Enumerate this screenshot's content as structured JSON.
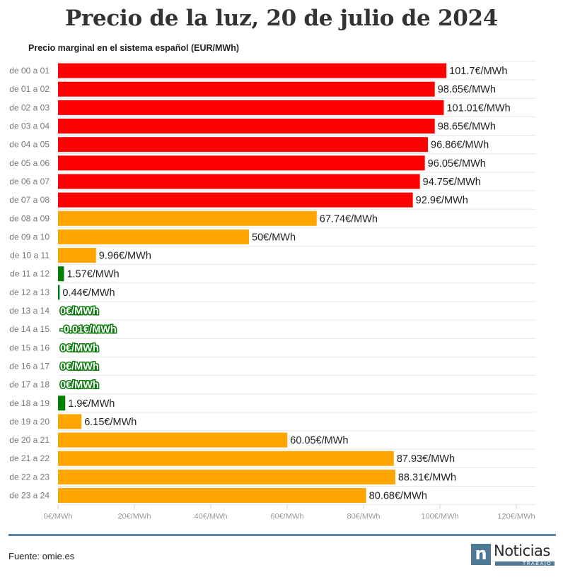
{
  "header": {
    "title": "Precio de la luz, 20 de julio de 2024",
    "subtitle": "Precio marginal en el sistema español (EUR/MWh)"
  },
  "footer": {
    "source": "Fuente: omie.es",
    "logo_letter": "n",
    "logo_word": "Noticias",
    "logo_sub": "TRABAJO"
  },
  "colors": {
    "high": "#ff0000",
    "mid": "#ffa500",
    "low": "#008000",
    "grid": "#e6e6e6",
    "accent": "#4f7796"
  },
  "chart_data": {
    "type": "bar",
    "orientation": "horizontal",
    "title": "Precio de la luz, 20 de julio de 2024",
    "subtitle": "Precio marginal en el sistema español (EUR/MWh)",
    "xlabel": "",
    "ylabel": "",
    "xlim": [
      0,
      120
    ],
    "ticks": [
      0,
      20,
      40,
      60,
      80,
      100,
      120
    ],
    "tick_labels": [
      "0€/MWh",
      "20€/MWh",
      "40€/MWh",
      "60€/MWh",
      "80€/MWh",
      "100€/MWh",
      "120€/MWh"
    ],
    "categories": [
      "de 00 a 01",
      "de 01 a 02",
      "de 02 a 03",
      "de 03 a 04",
      "de 04 a 05",
      "de 05 a 06",
      "de 06 a 07",
      "de 07 a 08",
      "de 08 a 09",
      "de 09 a 10",
      "de 10 a 11",
      "de 11 a 12",
      "de 12 a 13",
      "de 13 a 14",
      "de 14 a 15",
      "de 15 a 16",
      "de 16 a 17",
      "de 17 a 18",
      "de 18 a 19",
      "de 19 a 20",
      "de 20 a 21",
      "de 21 a 22",
      "de 22 a 23",
      "de 23 a 24"
    ],
    "values": [
      101.7,
      98.65,
      101.01,
      98.65,
      96.86,
      96.05,
      94.75,
      92.9,
      67.74,
      50,
      9.96,
      1.57,
      0.44,
      0,
      -0.01,
      0,
      0,
      0,
      1.9,
      6.15,
      60.05,
      87.93,
      88.31,
      80.68
    ],
    "value_labels": [
      "101.7€/MWh",
      "98.65€/MWh",
      "101.01€/MWh",
      "98.65€/MWh",
      "96.86€/MWh",
      "96.05€/MWh",
      "94.75€/MWh",
      "92.9€/MWh",
      "67.74€/MWh",
      "50€/MWh",
      "9.96€/MWh",
      "1.57€/MWh",
      "0.44€/MWh",
      "0€/MWh",
      "-0.01€/MWh",
      "0€/MWh",
      "0€/MWh",
      "0€/MWh",
      "1.9€/MWh",
      "6.15€/MWh",
      "60.05€/MWh",
      "87.93€/MWh",
      "88.31€/MWh",
      "80.68€/MWh"
    ],
    "bar_colors": [
      "high",
      "high",
      "high",
      "high",
      "high",
      "high",
      "high",
      "high",
      "mid",
      "mid",
      "mid",
      "low",
      "low",
      "low",
      "low",
      "low",
      "low",
      "low",
      "low",
      "mid",
      "mid",
      "mid",
      "mid",
      "mid"
    ]
  }
}
